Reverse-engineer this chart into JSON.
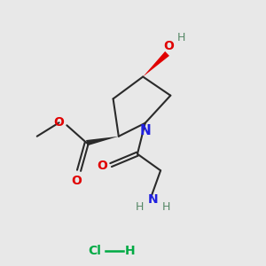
{
  "bg_color": "#e8e8e8",
  "bond_color": "#2a2a2a",
  "N_color": "#2020e0",
  "O_color": "#e00000",
  "OH_label_color": "#007755",
  "H_label_color": "#558866",
  "NH2_N_color": "#2020e0",
  "Cl_color": "#00aa44",
  "lw": 1.5,
  "figsize": [
    3.0,
    3.0
  ],
  "dpi": 100,
  "xlim": [
    -1,
    11
  ],
  "ylim": [
    -1,
    11
  ]
}
